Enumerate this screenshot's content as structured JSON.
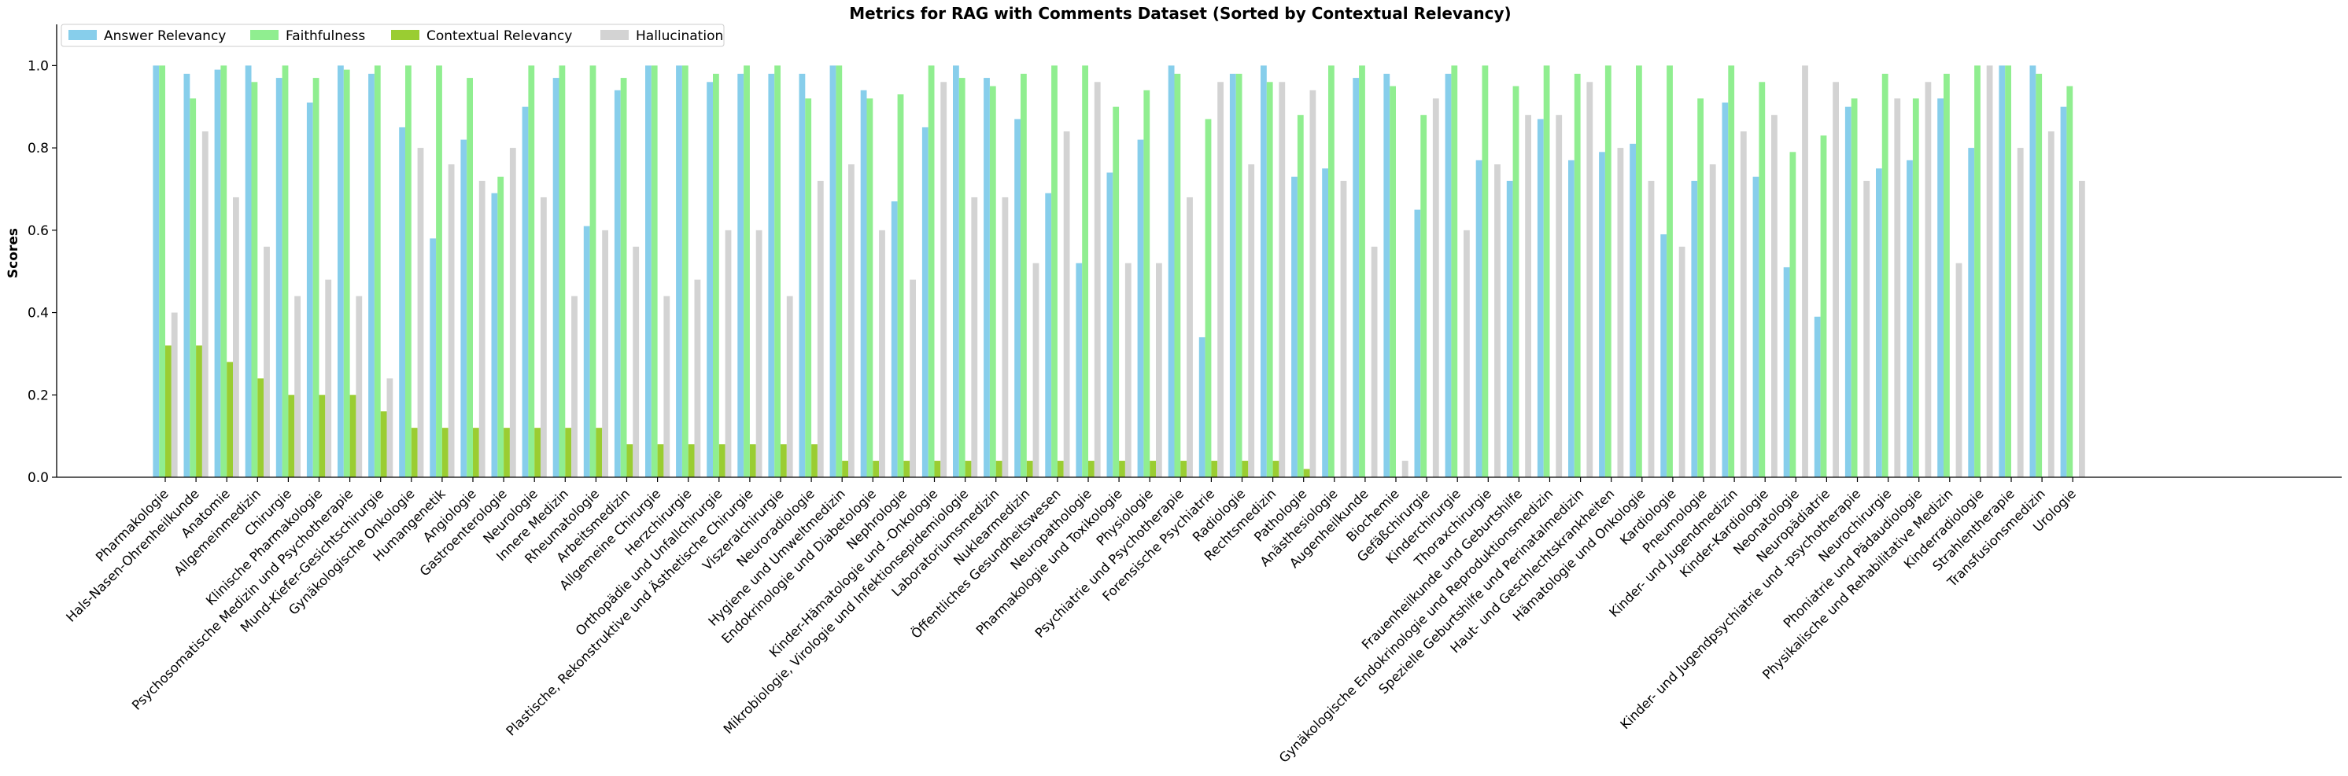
{
  "chart_data": {
    "type": "bar",
    "title": "Metrics for RAG with Comments Dataset (Sorted by Contextual Relevancy)",
    "xlabel": "",
    "ylabel": "Scores",
    "ylim": [
      0,
      1.1
    ],
    "yticks": [
      "0.0",
      "0.2",
      "0.4",
      "0.6",
      "0.8",
      "1.0"
    ],
    "grid": false,
    "legend_position": "top-left",
    "categories": [
      "Pharmakologie",
      "Hals-Nasen-Ohrenheilkunde",
      "Anatomie",
      "Allgemeinmedizin",
      "Chirurgie",
      "Klinische Pharmakologie",
      "Psychosomatische Medizin und Psychotherapie",
      "Mund-Kiefer-Gesichtschirurgie",
      "Gynäkologische Onkologie",
      "Humangenetik",
      "Angiologie",
      "Gastroenterologie",
      "Neurologie",
      "Innere Medizin",
      "Rheumatologie",
      "Arbeitsmedizin",
      "Allgemeine Chirurgie",
      "Herzchirurgie",
      "Orthopädie und Unfallchirurgie",
      "Plastische, Rekonstruktive und Ästhetische Chirurgie",
      "Viszeralchirurgie",
      "Neuroradiologie",
      "Hygiene und Umweltmedizin",
      "Endokrinologie und Diabetologie",
      "Nephrologie",
      "Kinder-Hämatologie und -Onkologie",
      "Mikrobiologie, Virologie und Infektionsepidemiologie",
      "Laboratoriumsmedizin",
      "Nuklearmedizin",
      "Öffentliches Gesundheitswesen",
      "Neuropathologie",
      "Pharmakologie und Toxikologie",
      "Physiologie",
      "Psychiatrie und Psychotherapie",
      "Forensische Psychiatrie",
      "Radiologie",
      "Rechtsmedizin",
      "Pathologie",
      "Anästhesiologie",
      "Augenheilkunde",
      "Biochemie",
      "Gefäßchirurgie",
      "Kinderchirurgie",
      "Thoraxchirurgie",
      "Frauenheilkunde und Geburtshilfe",
      "Gynäkologische Endokrinologie und Reproduktionsmedizin",
      "Spezielle Geburtshilfe und Perinatalmedizin",
      "Haut- und Geschlechtskrankheiten",
      "Hämatologie und Onkologie",
      "Kardiologie",
      "Pneumologie",
      "Kinder- und Jugendmedizin",
      "Kinder-Kardiologie",
      "Neonatologie",
      "Neuropädiatrie",
      "Kinder- und Jugendpsychiatrie und -psychotherapie",
      "Neurochirurgie",
      "Phoniatrie und Pädaudiologie",
      "Physikalische und Rehabilitative Medizin",
      "Kinderradiologie",
      "Strahlentherapie",
      "Transfusionsmedizin",
      "Urologie"
    ],
    "series": [
      {
        "name": "Answer Relevancy",
        "color": "#87ceeb",
        "values": [
          1.0,
          0.98,
          0.99,
          1.0,
          0.97,
          0.91,
          1.0,
          0.98,
          0.85,
          0.58,
          0.82,
          0.69,
          0.9,
          0.97,
          0.61,
          0.94,
          1.0,
          1.0,
          0.96,
          0.98,
          0.98,
          0.98,
          1.0,
          0.94,
          0.67,
          0.85,
          1.0,
          0.97,
          0.87,
          0.69,
          0.52,
          0.74,
          0.82,
          1.0,
          0.34,
          0.98,
          1.0,
          0.73,
          0.75,
          0.97,
          0.98,
          0.65,
          0.98,
          0.77,
          0.72,
          0.87,
          0.77,
          0.79,
          0.81,
          0.59,
          0.72,
          0.91,
          0.73,
          0.51,
          0.39,
          0.9,
          0.75,
          0.77,
          0.92,
          0.8,
          1.0,
          1.0,
          0.9
        ]
      },
      {
        "name": "Faithfulness",
        "color": "#90ee90",
        "values": [
          1.0,
          0.92,
          1.0,
          0.96,
          1.0,
          0.97,
          0.99,
          1.0,
          1.0,
          1.0,
          0.97,
          0.73,
          1.0,
          1.0,
          1.0,
          0.97,
          1.0,
          1.0,
          0.98,
          1.0,
          1.0,
          0.92,
          1.0,
          0.92,
          0.93,
          1.0,
          0.97,
          0.95,
          0.98,
          1.0,
          1.0,
          0.9,
          0.94,
          0.98,
          0.87,
          0.98,
          0.96,
          0.88,
          1.0,
          1.0,
          0.95,
          0.88,
          1.0,
          1.0,
          0.95,
          1.0,
          0.98,
          1.0,
          1.0,
          1.0,
          0.92,
          1.0,
          0.96,
          0.79,
          0.83,
          0.92,
          0.98,
          0.92,
          0.98,
          1.0,
          1.0,
          0.98,
          0.95
        ]
      },
      {
        "name": "Contextual Relevancy",
        "color": "#9acd32",
        "values": [
          0.32,
          0.32,
          0.28,
          0.24,
          0.2,
          0.2,
          0.2,
          0.16,
          0.12,
          0.12,
          0.12,
          0.12,
          0.12,
          0.12,
          0.12,
          0.08,
          0.08,
          0.08,
          0.08,
          0.08,
          0.08,
          0.08,
          0.04,
          0.04,
          0.04,
          0.04,
          0.04,
          0.04,
          0.04,
          0.04,
          0.04,
          0.04,
          0.04,
          0.04,
          0.04,
          0.04,
          0.04,
          0.02,
          0,
          0,
          0,
          0,
          0,
          0,
          0,
          0,
          0,
          0,
          0,
          0,
          0,
          0,
          0,
          0,
          0,
          0,
          0,
          0,
          0,
          0,
          0,
          0,
          0
        ]
      },
      {
        "name": "Hallucination",
        "color": "#d3d3d3",
        "values": [
          0.4,
          0.84,
          0.68,
          0.56,
          0.44,
          0.48,
          0.44,
          0.24,
          0.8,
          0.76,
          0.72,
          0.8,
          0.68,
          0.44,
          0.6,
          0.56,
          0.44,
          0.48,
          0.6,
          0.6,
          0.44,
          0.72,
          0.76,
          0.6,
          0.48,
          0.96,
          0.68,
          0.68,
          0.52,
          0.84,
          0.96,
          0.52,
          0.52,
          0.68,
          0.96,
          0.76,
          0.96,
          0.94,
          0.72,
          0.56,
          0.04,
          0.92,
          0.6,
          0.76,
          0.88,
          0.88,
          0.96,
          0.8,
          0.72,
          0.56,
          0.76,
          0.84,
          0.88,
          1.0,
          0.96,
          0.72,
          0.92,
          0.96,
          0.52,
          1.0,
          0.8,
          0.84,
          0.72
        ]
      }
    ]
  }
}
